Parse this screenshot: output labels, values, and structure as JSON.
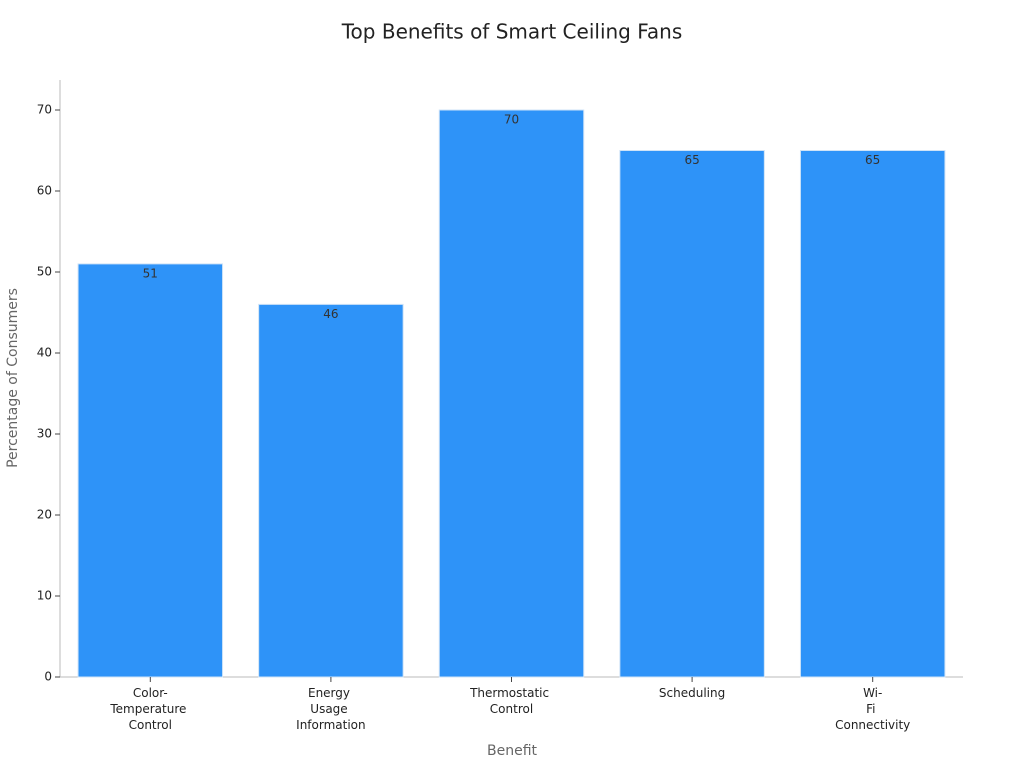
{
  "chart_data": {
    "type": "bar",
    "title": "Top Benefits of Smart Ceiling Fans",
    "x_label": "Benefit",
    "y_label": "Percentage of Consumers",
    "categories": [
      "Color-Temperature Control",
      "Energy Usage Information",
      "Thermostatic Control",
      "Scheduling",
      "Wi-Fi Connectivity"
    ],
    "values": [
      51,
      46,
      70,
      65,
      65
    ],
    "color": "#2e93f8",
    "ylim": [
      0,
      74
    ],
    "yticks": [
      0,
      10,
      20,
      30,
      40,
      50,
      60,
      70
    ],
    "grid": false
  }
}
